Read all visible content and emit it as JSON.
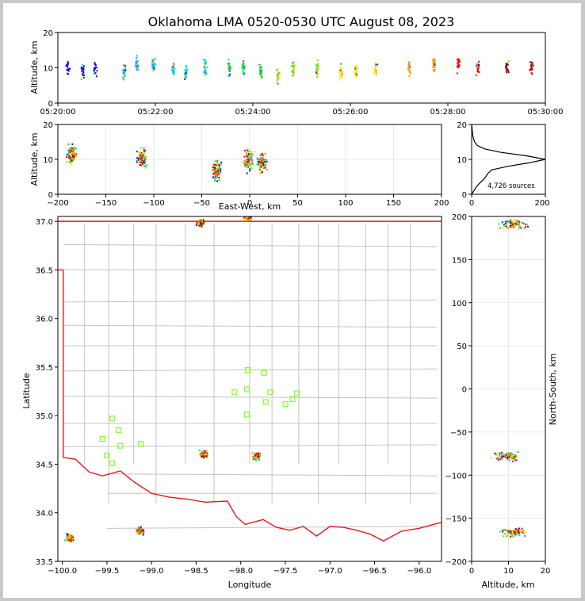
{
  "title": "Oklahoma LMA 0520-0530 UTC August 08, 2023",
  "chart_data": [
    {
      "panel": "time-height",
      "type": "scatter",
      "ylabel": "Altitude, km",
      "ylim": [
        0,
        20
      ],
      "yticks": [
        0,
        10,
        20
      ],
      "xlim": [
        "05:20:00",
        "05:30:00"
      ],
      "xticks": [
        "05:20:00",
        "05:22:00",
        "05:24:00",
        "05:26:00",
        "05:28:00",
        "05:30:00"
      ],
      "color_scale": "source time (blue → red)",
      "points_note": "sources 2–16 km, densest near 10 km, bursts throughout 05:20–05:30",
      "bursts": [
        {
          "t": 0.2,
          "alt": 10
        },
        {
          "t": 0.5,
          "alt": 9
        },
        {
          "t": 0.75,
          "alt": 10
        },
        {
          "t": 1.35,
          "alt": 9
        },
        {
          "t": 1.6,
          "alt": 11
        },
        {
          "t": 1.95,
          "alt": 11
        },
        {
          "t": 2.35,
          "alt": 10
        },
        {
          "t": 2.6,
          "alt": 9
        },
        {
          "t": 3.0,
          "alt": 10
        },
        {
          "t": 3.5,
          "alt": 10
        },
        {
          "t": 3.8,
          "alt": 10
        },
        {
          "t": 4.15,
          "alt": 9
        },
        {
          "t": 4.5,
          "alt": 8
        },
        {
          "t": 4.8,
          "alt": 10
        },
        {
          "t": 5.3,
          "alt": 10
        },
        {
          "t": 5.8,
          "alt": 9
        },
        {
          "t": 6.1,
          "alt": 9
        },
        {
          "t": 6.5,
          "alt": 10
        },
        {
          "t": 7.2,
          "alt": 10
        },
        {
          "t": 7.7,
          "alt": 11
        },
        {
          "t": 8.2,
          "alt": 11
        },
        {
          "t": 8.6,
          "alt": 10
        },
        {
          "t": 9.2,
          "alt": 10
        },
        {
          "t": 9.7,
          "alt": 10
        }
      ]
    },
    {
      "panel": "east-west vs altitude",
      "type": "scatter",
      "xlabel": "East-West, km",
      "ylabel": "Altitude, km",
      "xlim": [
        -200,
        200
      ],
      "xticks": [
        -200,
        -150,
        -100,
        -50,
        0,
        50,
        100,
        150,
        200
      ],
      "ylim": [
        0,
        20
      ],
      "yticks": [
        0,
        10,
        20
      ],
      "clusters": [
        {
          "x": -187,
          "alt": 11.5
        },
        {
          "x": -113,
          "alt": 10.5
        },
        {
          "x": -35,
          "alt": 7
        },
        {
          "x": -2,
          "alt": 10
        },
        {
          "x": 12,
          "alt": 9.5
        }
      ]
    },
    {
      "panel": "altitude histogram",
      "type": "line",
      "xlim": [
        0,
        200
      ],
      "xticks": [
        0,
        200
      ],
      "ylim": [
        0,
        20
      ],
      "yticks": [
        0,
        10,
        20
      ],
      "annotation": "4,726 sources",
      "profile": [
        {
          "alt": 0,
          "count": 0
        },
        {
          "alt": 1,
          "count": 6
        },
        {
          "alt": 2,
          "count": 12
        },
        {
          "alt": 3,
          "count": 20
        },
        {
          "alt": 4,
          "count": 30
        },
        {
          "alt": 5,
          "count": 38
        },
        {
          "alt": 6,
          "count": 44
        },
        {
          "alt": 7,
          "count": 55
        },
        {
          "alt": 8,
          "count": 98
        },
        {
          "alt": 9,
          "count": 155
        },
        {
          "alt": 10,
          "count": 200
        },
        {
          "alt": 11,
          "count": 150
        },
        {
          "alt": 12,
          "count": 80
        },
        {
          "alt": 13,
          "count": 35
        },
        {
          "alt": 14,
          "count": 15
        },
        {
          "alt": 15,
          "count": 8
        },
        {
          "alt": 16,
          "count": 5
        },
        {
          "alt": 17,
          "count": 3
        },
        {
          "alt": 18,
          "count": 2
        },
        {
          "alt": 19,
          "count": 1
        },
        {
          "alt": 20,
          "count": 0
        }
      ]
    },
    {
      "panel": "plan view map",
      "type": "scatter",
      "xlabel": "Longitude",
      "ylabel": "Latitude",
      "xlim": [
        -100.05,
        -95.75
      ],
      "xticks": [
        -100.0,
        -99.5,
        -99.0,
        -98.5,
        -98.0,
        -97.5,
        -97.0,
        -96.5,
        -96.0
      ],
      "ylim": [
        33.5,
        37.05
      ],
      "yticks": [
        33.5,
        34.0,
        34.5,
        35.0,
        35.5,
        36.0,
        36.5,
        37.0
      ],
      "state_border_color": "#e41a1c",
      "county_line_color": "#c4c4c4",
      "station_color": "#7fff2a",
      "stations": [
        {
          "lon": -97.92,
          "lat": 35.47
        },
        {
          "lon": -97.74,
          "lat": 35.44
        },
        {
          "lon": -97.93,
          "lat": 35.27
        },
        {
          "lon": -98.07,
          "lat": 35.24
        },
        {
          "lon": -97.67,
          "lat": 35.24
        },
        {
          "lon": -97.37,
          "lat": 35.23
        },
        {
          "lon": -97.42,
          "lat": 35.17
        },
        {
          "lon": -97.72,
          "lat": 35.14
        },
        {
          "lon": -97.5,
          "lat": 35.12
        },
        {
          "lon": -97.93,
          "lat": 35.01
        },
        {
          "lon": -99.44,
          "lat": 34.97
        },
        {
          "lon": -99.37,
          "lat": 34.85
        },
        {
          "lon": -99.55,
          "lat": 34.76
        },
        {
          "lon": -99.35,
          "lat": 34.69
        },
        {
          "lon": -99.12,
          "lat": 34.71
        },
        {
          "lon": -99.5,
          "lat": 34.59
        },
        {
          "lon": -99.44,
          "lat": 34.51
        }
      ],
      "clusters": [
        {
          "lon": -99.93,
          "lat": 33.75
        },
        {
          "lon": -99.14,
          "lat": 33.82
        },
        {
          "lon": -98.46,
          "lat": 36.99
        },
        {
          "lon": -97.93,
          "lat": 37.05
        },
        {
          "lon": -98.43,
          "lat": 34.61
        },
        {
          "lon": -97.83,
          "lat": 34.59
        }
      ]
    },
    {
      "panel": "altitude vs north-south",
      "type": "scatter",
      "xlabel": "Altitude, km",
      "ylabel": "North-South, km",
      "xlim": [
        0,
        20
      ],
      "xticks": [
        0,
        10,
        20
      ],
      "ylim": [
        -200,
        200
      ],
      "yticks": [
        -200,
        -150,
        -100,
        -50,
        0,
        50,
        100,
        150,
        200
      ],
      "clusters": [
        {
          "alt": 9,
          "y": -77
        },
        {
          "alt": 11,
          "y": -165
        },
        {
          "alt": 11,
          "y": 192
        }
      ]
    }
  ]
}
